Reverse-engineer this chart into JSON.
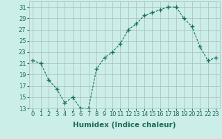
{
  "x": [
    0,
    1,
    2,
    3,
    4,
    5,
    6,
    7,
    8,
    9,
    10,
    11,
    12,
    13,
    14,
    15,
    16,
    17,
    18,
    19,
    20,
    21,
    22,
    23
  ],
  "y": [
    21.5,
    21.0,
    18.0,
    16.5,
    14.0,
    15.0,
    13.0,
    13.0,
    20.0,
    22.0,
    23.0,
    24.5,
    27.0,
    28.0,
    29.5,
    30.0,
    30.5,
    31.0,
    31.0,
    29.0,
    27.5,
    24.0,
    21.5,
    22.0
  ],
  "line_color": "#1a6b5e",
  "marker": "+",
  "marker_size": 4,
  "background_color": "#cceee8",
  "grid_color": "#aabbbb",
  "xlabel": "Humidex (Indice chaleur)",
  "ylabel": "",
  "title": "",
  "ylim": [
    13,
    32
  ],
  "xlim": [
    -0.5,
    23.5
  ],
  "yticks": [
    13,
    15,
    17,
    19,
    21,
    23,
    25,
    27,
    29,
    31
  ],
  "xticks": [
    0,
    1,
    2,
    3,
    4,
    5,
    6,
    7,
    8,
    9,
    10,
    11,
    12,
    13,
    14,
    15,
    16,
    17,
    18,
    19,
    20,
    21,
    22,
    23
  ],
  "tick_fontsize": 6,
  "xlabel_fontsize": 7.5,
  "linewidth": 0.8
}
